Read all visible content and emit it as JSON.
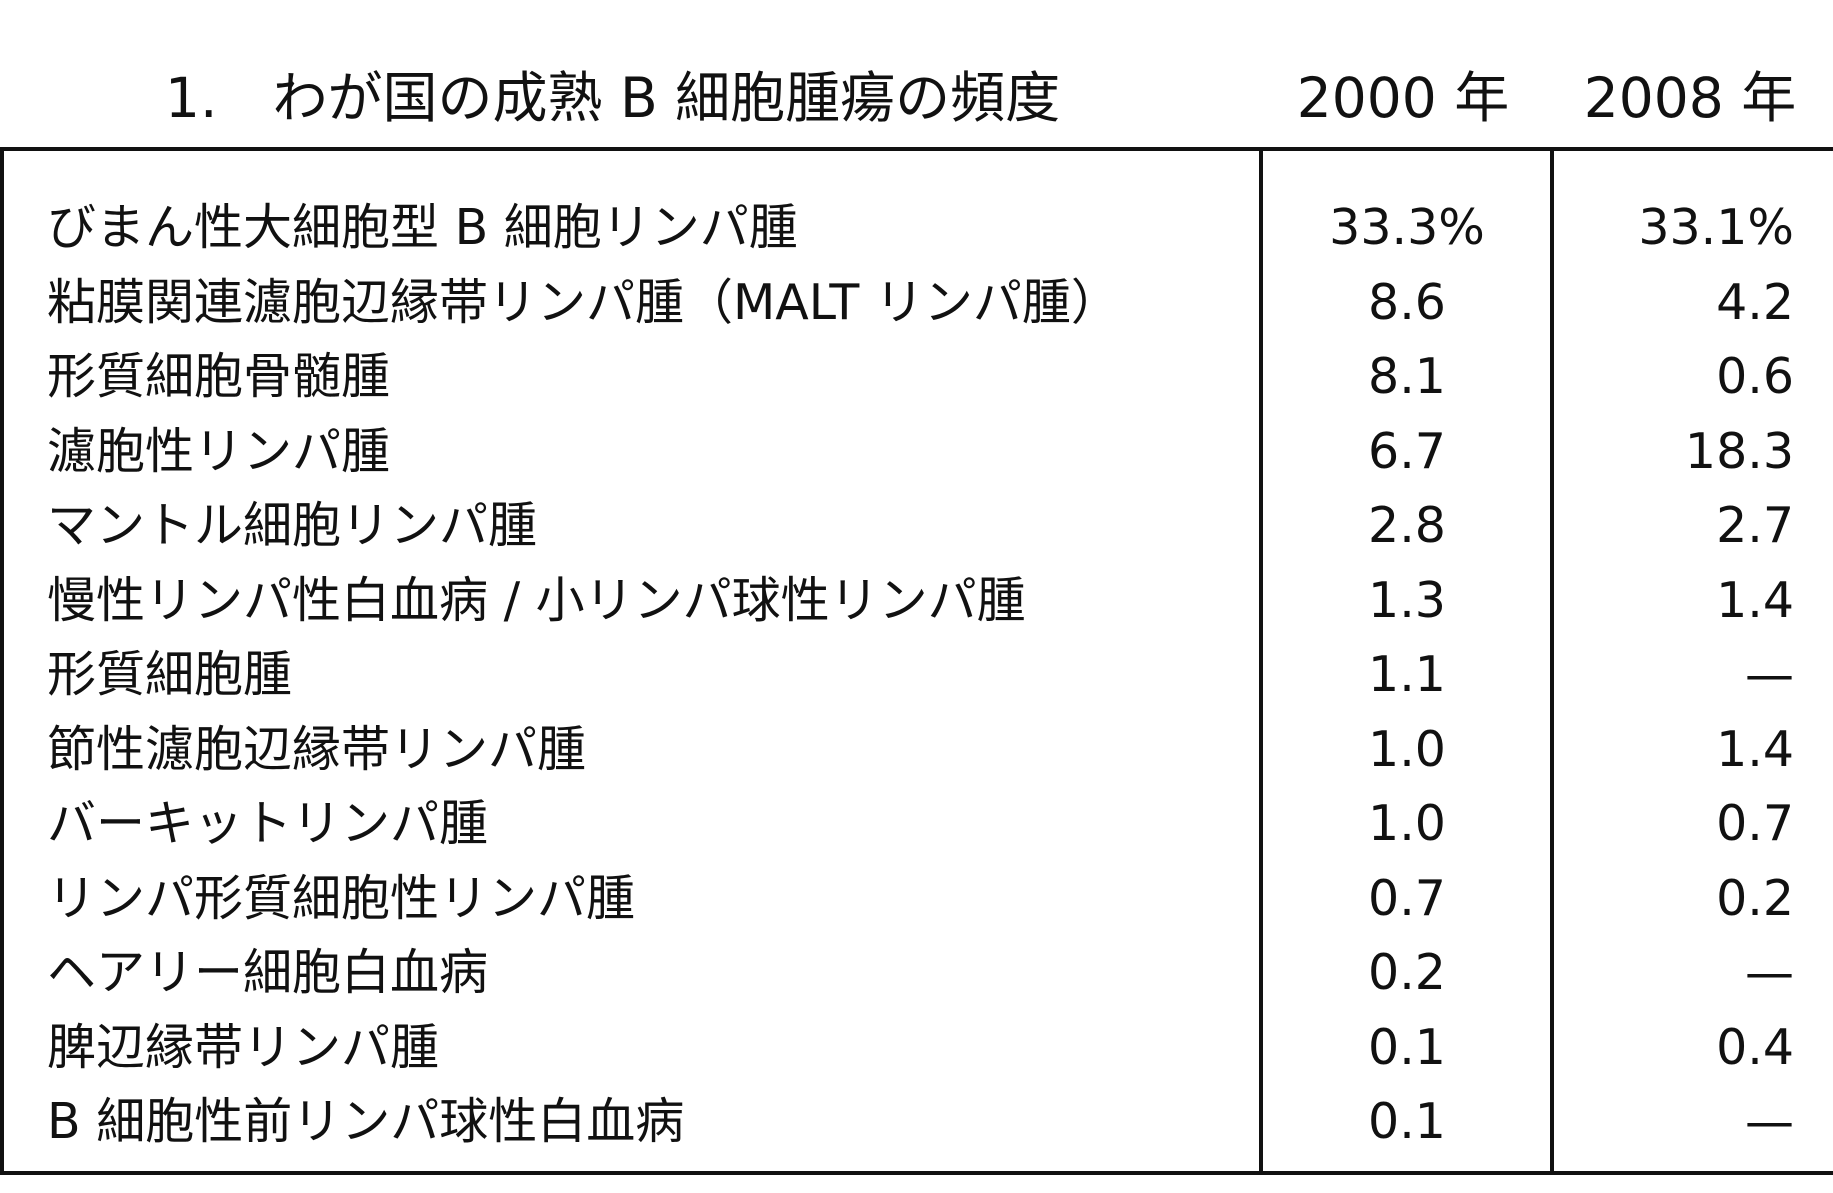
{
  "title": "1.　わが国の成熟 B 細胞腫瘍の頻度",
  "columns": {
    "year_2000": "2000 年",
    "year_2008": "2008 年"
  },
  "rows": [
    {
      "name": "びまん性大細胞型 B 細胞リンパ腫",
      "v2000": "33.3%",
      "v2008": "33.1%"
    },
    {
      "name": "粘膜関連濾胞辺縁帯リンパ腫（MALT リンパ腫）",
      "v2000": "8.6",
      "v2008": "4.2"
    },
    {
      "name": "形質細胞骨髄腫",
      "v2000": "8.1",
      "v2008": "0.6"
    },
    {
      "name": "濾胞性リンパ腫",
      "v2000": "6.7",
      "v2008": "18.3"
    },
    {
      "name": "マントル細胞リンパ腫",
      "v2000": "2.8",
      "v2008": "2.7"
    },
    {
      "name": "慢性リンパ性白血病 / 小リンパ球性リンパ腫",
      "v2000": "1.3",
      "v2008": "1.4"
    },
    {
      "name": "形質細胞腫",
      "v2000": "1.1",
      "v2008": "—"
    },
    {
      "name": "節性濾胞辺縁帯リンパ腫",
      "v2000": "1.0",
      "v2008": "1.4"
    },
    {
      "name": "バーキットリンパ腫",
      "v2000": "1.0",
      "v2008": "0.7"
    },
    {
      "name": "リンパ形質細胞性リンパ腫",
      "v2000": "0.7",
      "v2008": "0.2"
    },
    {
      "name": "ヘアリー細胞白血病",
      "v2000": "0.2",
      "v2008": "—"
    },
    {
      "name": "脾辺縁帯リンパ腫",
      "v2000": "0.1",
      "v2008": "0.4"
    },
    {
      "name": "B 細胞性前リンパ球性白血病",
      "v2000": "0.1",
      "v2008": "—"
    }
  ]
}
